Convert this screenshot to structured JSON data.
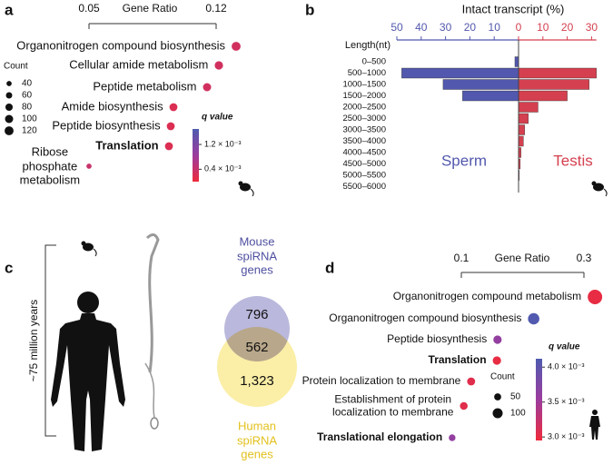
{
  "chart_data": [
    {
      "type": "dot",
      "panel": "a",
      "x_label": "Gene Ratio",
      "xlim": [
        0.05,
        0.12
      ],
      "xticks": [
        0.05,
        0.12
      ],
      "categories": [
        "Organonitrogen compound biosynthesis",
        "Cellular amide metabolism",
        "Peptide metabolism",
        "Amide biosynthesis",
        "Peptide biosynthesis",
        "Translation",
        "Ribose\nphosphate\nmetabolism"
      ],
      "bold": [
        false,
        false,
        false,
        false,
        false,
        true,
        false
      ],
      "gene_ratio": [
        0.131,
        0.1215,
        0.115,
        0.0965,
        0.095,
        0.094,
        0.05
      ],
      "counts": [
        120,
        105,
        100,
        95,
        95,
        95,
        40
      ],
      "q_values": [
        0.0003,
        0.0003,
        0.0003,
        0.0002,
        0.0002,
        0.0002,
        0.0004
      ],
      "colormap": [
        "#ee2a3b",
        "#9c3c9e",
        "#4e5bb0"
      ],
      "size_legend": {
        "title": "Count",
        "values": [
          40,
          60,
          80,
          100,
          120
        ]
      },
      "colorbar": {
        "title": "q value",
        "lim": [
          0,
          0.0017
        ],
        "ticks": [
          {
            "value": 0.0012,
            "label": "1.2 × 10⁻³"
          },
          {
            "value": 0.0004,
            "label": "0.4 × 10⁻³"
          }
        ]
      }
    },
    {
      "type": "bar",
      "panel": "b",
      "title": "Intact transcript (%)",
      "y_label": "Length(nt)",
      "categories": [
        "0–500",
        "500–1000",
        "1000–1500",
        "1500–2000",
        "2000–2500",
        "2500–3000",
        "3000–3500",
        "3500–4000",
        "4000–4500",
        "4500–5000",
        "5000–5500",
        "5500–6000"
      ],
      "xlim_left": [
        0,
        50
      ],
      "xticks_left": [
        50,
        40,
        30,
        20,
        10
      ],
      "xlim_right": [
        0,
        32
      ],
      "xticks_right": [
        0,
        10,
        20,
        30
      ],
      "series": [
        {
          "name": "Sperm",
          "color": "#5258ad",
          "axis": "left",
          "values": [
            1.5,
            48,
            31,
            23,
            0,
            0,
            0,
            0,
            0,
            0,
            0,
            0
          ]
        },
        {
          "name": "Testis",
          "color": "#d4404f",
          "axis": "right",
          "values": [
            0,
            32,
            29,
            20,
            8,
            4,
            2.5,
            2,
            1,
            0.7,
            0.3,
            0
          ]
        }
      ]
    },
    {
      "type": "dot",
      "panel": "d",
      "x_label": "Gene Ratio",
      "xlim": [
        0.1,
        0.3
      ],
      "xticks": [
        0.1,
        0.3
      ],
      "categories": [
        "Organonitrogen compound metabolism",
        "Organonitrogen compound biosynthesis",
        "Peptide biosynthesis",
        "Translation",
        "Protein localization to membrane",
        "Establishment of protein\nlocalization to membrane",
        "Translational elongation"
      ],
      "bold": [
        false,
        false,
        false,
        true,
        false,
        false,
        true
      ],
      "gene_ratio": [
        0.318,
        0.218,
        0.159,
        0.158,
        0.116,
        0.104,
        0.085
      ],
      "counts": [
        210,
        130,
        70,
        70,
        65,
        60,
        45
      ],
      "q_values": [
        0.003,
        0.0041,
        0.0036,
        0.003,
        0.00305,
        0.00305,
        0.0036
      ],
      "colormap": [
        "#ee2a3b",
        "#9c3c9e",
        "#4e5bb0"
      ],
      "size_legend": {
        "title": "Count",
        "values": [
          50,
          100
        ]
      },
      "colorbar": {
        "title": "q value",
        "lim": [
          0.00295,
          0.00412
        ],
        "ticks": [
          {
            "value": 0.004,
            "label": "4.0 × 10⁻³"
          },
          {
            "value": 0.0035,
            "label": "3.5 × 10⁻³"
          },
          {
            "value": 0.003,
            "label": "3.0 × 10⁻³"
          }
        ]
      }
    }
  ],
  "panel_c": {
    "label": "c",
    "time_span": "~75 million years",
    "mouse_label": "Mouse\nspiRNA\ngenes",
    "human_label": "Human\nspiRNA\ngenes",
    "mouse_only": 796,
    "shared": 562,
    "human_only": {
      "value": 1323,
      "label": "1,323"
    }
  }
}
